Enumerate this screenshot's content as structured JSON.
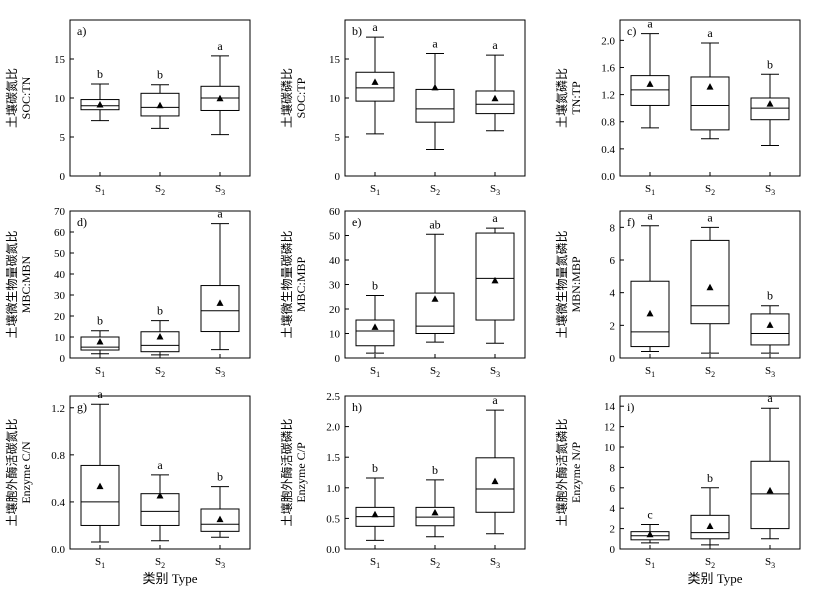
{
  "figure": {
    "xtitle": "类别 Type"
  },
  "chart_data": [
    {
      "type": "box",
      "panel": "a)",
      "ylabel_cn": "土壤碳氮比",
      "ylabel_en": "SOC:TN",
      "yrange": [
        0,
        20
      ],
      "yticks": [
        0,
        5,
        10,
        15,
        20
      ],
      "ytick_labels": [
        "0",
        "5",
        "10",
        "15",
        ""
      ],
      "categories": [
        "1",
        "2",
        "3"
      ],
      "boxes": [
        {
          "min": 7.1,
          "q1": 8.5,
          "median": 9.0,
          "q3": 9.8,
          "max": 11.8,
          "mean": 9.1,
          "letter": "b"
        },
        {
          "min": 6.1,
          "q1": 7.7,
          "median": 8.8,
          "q3": 10.6,
          "max": 11.7,
          "mean": 9.0,
          "letter": "b"
        },
        {
          "min": 5.3,
          "q1": 8.4,
          "median": 10.0,
          "q3": 11.5,
          "max": 15.4,
          "mean": 9.9,
          "letter": "a"
        }
      ]
    },
    {
      "type": "box",
      "panel": "b)",
      "ylabel_cn": "土壤碳磷比",
      "ylabel_en": "SOC:TP",
      "yrange": [
        0,
        20
      ],
      "yticks": [
        0,
        5,
        10,
        15,
        20
      ],
      "ytick_labels": [
        "0",
        "5",
        "10",
        "15",
        ""
      ],
      "categories": [
        "1",
        "2",
        "3"
      ],
      "boxes": [
        {
          "min": 5.4,
          "q1": 9.6,
          "median": 11.3,
          "q3": 13.3,
          "max": 17.8,
          "mean": 12.0,
          "letter": "a"
        },
        {
          "min": 3.4,
          "q1": 6.9,
          "median": 8.6,
          "q3": 11.1,
          "max": 15.7,
          "mean": 11.3,
          "letter": "a"
        },
        {
          "min": 5.8,
          "q1": 8.0,
          "median": 9.2,
          "q3": 10.9,
          "max": 15.5,
          "mean": 9.9,
          "letter": "a"
        }
      ]
    },
    {
      "type": "box",
      "panel": "c)",
      "ylabel_cn": "土壤氮磷比",
      "ylabel_en": "TN:TP",
      "yrange": [
        0,
        2.3
      ],
      "yticks": [
        0,
        0.4,
        0.8,
        1.2,
        1.6,
        2.0
      ],
      "ytick_labels": [
        "0.0",
        "0.4",
        "0.8",
        "1.2",
        "1.6",
        "2.0"
      ],
      "categories": [
        "1",
        "2",
        "3"
      ],
      "boxes": [
        {
          "min": 0.71,
          "q1": 1.04,
          "median": 1.27,
          "q3": 1.48,
          "max": 2.1,
          "mean": 1.35,
          "letter": "a"
        },
        {
          "min": 0.55,
          "q1": 0.68,
          "median": 1.04,
          "q3": 1.46,
          "max": 1.96,
          "mean": 1.31,
          "letter": "a"
        },
        {
          "min": 0.45,
          "q1": 0.83,
          "median": 1.0,
          "q3": 1.15,
          "max": 1.5,
          "mean": 1.06,
          "letter": "b"
        }
      ]
    },
    {
      "type": "box",
      "panel": "d)",
      "ylabel_cn": "土壤微生物量碳氮比",
      "ylabel_en": "MBC:MBN",
      "yrange": [
        0,
        70
      ],
      "yticks": [
        0,
        10,
        20,
        30,
        40,
        50,
        60,
        70
      ],
      "ytick_labels": [
        "0",
        "10",
        "20",
        "30",
        "40",
        "50",
        "60",
        "70"
      ],
      "categories": [
        "1",
        "2",
        "3"
      ],
      "boxes": [
        {
          "min": 2.0,
          "q1": 3.8,
          "median": 5.2,
          "q3": 10.0,
          "max": 13.0,
          "mean": 7.6,
          "letter": "b"
        },
        {
          "min": 1.5,
          "q1": 3.0,
          "median": 6.0,
          "q3": 12.5,
          "max": 17.8,
          "mean": 10.0,
          "letter": "b"
        },
        {
          "min": 4.0,
          "q1": 12.6,
          "median": 22.5,
          "q3": 34.5,
          "max": 64.0,
          "mean": 26.0,
          "letter": "a"
        }
      ]
    },
    {
      "type": "box",
      "panel": "e)",
      "ylabel_cn": "土壤微生物量碳磷比",
      "ylabel_en": "MBC:MBP",
      "yrange": [
        0,
        60
      ],
      "yticks": [
        0,
        10,
        20,
        30,
        40,
        50,
        60
      ],
      "ytick_labels": [
        "0",
        "10",
        "20",
        "30",
        "40",
        "50",
        "60"
      ],
      "categories": [
        "1",
        "2",
        "3"
      ],
      "boxes": [
        {
          "min": 2.0,
          "q1": 5.0,
          "median": 11.0,
          "q3": 15.5,
          "max": 25.5,
          "mean": 12.5,
          "letter": "b"
        },
        {
          "min": 6.5,
          "q1": 10.0,
          "median": 13.0,
          "q3": 26.5,
          "max": 50.5,
          "mean": 24.0,
          "letter": "ab"
        },
        {
          "min": 6.0,
          "q1": 15.5,
          "median": 32.5,
          "q3": 51.0,
          "max": 53.0,
          "mean": 31.5,
          "letter": "a"
        }
      ]
    },
    {
      "type": "box",
      "panel": "f)",
      "ylabel_cn": "土壤微生物量氮磷比",
      "ylabel_en": "MBN:MBP",
      "yrange": [
        0,
        9
      ],
      "yticks": [
        0,
        2,
        4,
        6,
        8
      ],
      "ytick_labels": [
        "0",
        "2",
        "4",
        "6",
        "8"
      ],
      "categories": [
        "1",
        "2",
        "3"
      ],
      "boxes": [
        {
          "min": 0.4,
          "q1": 0.7,
          "median": 1.6,
          "q3": 4.7,
          "max": 8.1,
          "mean": 2.7,
          "letter": "a"
        },
        {
          "min": 0.3,
          "q1": 2.1,
          "median": 3.2,
          "q3": 7.2,
          "max": 8.0,
          "mean": 4.3,
          "letter": "a"
        },
        {
          "min": 0.3,
          "q1": 0.8,
          "median": 1.5,
          "q3": 2.7,
          "max": 3.2,
          "mean": 2.0,
          "letter": "b"
        }
      ]
    },
    {
      "type": "box",
      "panel": "g)",
      "ylabel_cn": "土壤胞外酶活碳氮比",
      "ylabel_en": "Enzyme C/N",
      "yrange": [
        0,
        1.3
      ],
      "yticks": [
        0,
        0.4,
        0.8,
        1.2
      ],
      "ytick_labels": [
        "0.0",
        "0.4",
        "0.8",
        "1.2"
      ],
      "categories": [
        "1",
        "2",
        "3"
      ],
      "boxes": [
        {
          "min": 0.06,
          "q1": 0.2,
          "median": 0.4,
          "q3": 0.71,
          "max": 1.23,
          "mean": 0.53,
          "letter": "a"
        },
        {
          "min": 0.07,
          "q1": 0.2,
          "median": 0.32,
          "q3": 0.47,
          "max": 0.63,
          "mean": 0.45,
          "letter": "a"
        },
        {
          "min": 0.1,
          "q1": 0.15,
          "median": 0.21,
          "q3": 0.34,
          "max": 0.53,
          "mean": 0.25,
          "letter": "b"
        }
      ]
    },
    {
      "type": "box",
      "panel": "h)",
      "ylabel_cn": "土壤胞外酶活碳磷比",
      "ylabel_en": "Enzyme C/P",
      "yrange": [
        0,
        2.5
      ],
      "yticks": [
        0,
        0.5,
        1.0,
        1.5,
        2.0,
        2.5
      ],
      "ytick_labels": [
        "0.0",
        "0.5",
        "1.0",
        "1.5",
        "2.0",
        "2.5"
      ],
      "categories": [
        "1",
        "2",
        "3"
      ],
      "boxes": [
        {
          "min": 0.14,
          "q1": 0.37,
          "median": 0.53,
          "q3": 0.68,
          "max": 1.16,
          "mean": 0.56,
          "letter": "b"
        },
        {
          "min": 0.2,
          "q1": 0.38,
          "median": 0.52,
          "q3": 0.68,
          "max": 1.13,
          "mean": 0.59,
          "letter": "b"
        },
        {
          "min": 0.25,
          "q1": 0.6,
          "median": 0.98,
          "q3": 1.49,
          "max": 2.27,
          "mean": 1.1,
          "letter": "a"
        }
      ]
    },
    {
      "type": "box",
      "panel": "i)",
      "ylabel_cn": "土壤胞外酶活氮磷比",
      "ylabel_en": "Enzyme N/P",
      "yrange": [
        0,
        15
      ],
      "yticks": [
        0,
        2,
        4,
        6,
        8,
        10,
        12,
        14
      ],
      "ytick_labels": [
        "0",
        "2",
        "4",
        "6",
        "8",
        "10",
        "12",
        "14"
      ],
      "categories": [
        "1",
        "2",
        "3"
      ],
      "boxes": [
        {
          "min": 0.6,
          "q1": 0.9,
          "median": 1.3,
          "q3": 1.7,
          "max": 2.4,
          "mean": 1.4,
          "letter": "c"
        },
        {
          "min": 0.4,
          "q1": 1.0,
          "median": 1.6,
          "q3": 3.3,
          "max": 6.0,
          "mean": 2.2,
          "letter": "b"
        },
        {
          "min": 1.0,
          "q1": 2.0,
          "median": 5.4,
          "q3": 8.6,
          "max": 13.8,
          "mean": 5.7,
          "letter": "a"
        }
      ]
    }
  ]
}
